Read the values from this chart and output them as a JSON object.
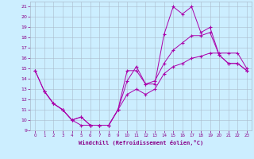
{
  "xlabel": "Windchill (Refroidissement éolien,°C)",
  "background_color": "#cceeff",
  "grid_color": "#aabbcc",
  "line_color": "#aa00aa",
  "ylim": [
    9,
    21.5
  ],
  "xlim": [
    -0.5,
    23.5
  ],
  "yticks": [
    9,
    10,
    11,
    12,
    13,
    14,
    15,
    16,
    17,
    18,
    19,
    20,
    21
  ],
  "xticks": [
    0,
    1,
    2,
    3,
    4,
    5,
    6,
    7,
    8,
    9,
    10,
    11,
    12,
    13,
    14,
    15,
    16,
    17,
    18,
    19,
    20,
    21,
    22,
    23
  ],
  "line1_x": [
    0,
    1,
    2,
    3,
    4,
    5,
    6,
    7,
    8,
    9,
    10,
    11,
    12,
    13,
    14,
    15,
    16,
    17,
    18,
    19,
    20,
    21,
    22,
    23
  ],
  "line1_y": [
    14.8,
    12.8,
    11.6,
    11.0,
    10.0,
    10.3,
    9.5,
    9.5,
    9.5,
    11.0,
    14.8,
    14.8,
    13.5,
    13.5,
    18.3,
    21.0,
    20.3,
    21.0,
    18.5,
    19.0,
    16.3,
    15.5,
    15.5,
    14.8
  ],
  "line2_x": [
    0,
    1,
    2,
    3,
    4,
    5,
    6,
    7,
    8,
    9,
    10,
    11,
    12,
    13,
    14,
    15,
    16,
    17,
    18,
    19,
    20,
    21,
    22,
    23
  ],
  "line2_y": [
    14.8,
    12.8,
    11.6,
    11.0,
    10.0,
    10.3,
    9.5,
    9.5,
    9.5,
    11.0,
    13.8,
    15.2,
    13.5,
    13.8,
    15.5,
    16.8,
    17.5,
    18.2,
    18.2,
    18.5,
    16.3,
    15.5,
    15.5,
    14.8
  ],
  "line3_x": [
    1,
    2,
    3,
    4,
    5,
    6,
    7,
    8,
    9,
    10,
    11,
    12,
    13,
    14,
    15,
    16,
    17,
    18,
    19,
    20,
    21,
    22,
    23
  ],
  "line3_y": [
    12.8,
    11.6,
    11.0,
    10.0,
    9.5,
    9.5,
    9.5,
    9.5,
    11.0,
    12.5,
    13.0,
    12.5,
    13.0,
    14.5,
    15.2,
    15.5,
    16.0,
    16.2,
    16.5,
    16.5,
    16.5,
    16.5,
    15.0
  ]
}
